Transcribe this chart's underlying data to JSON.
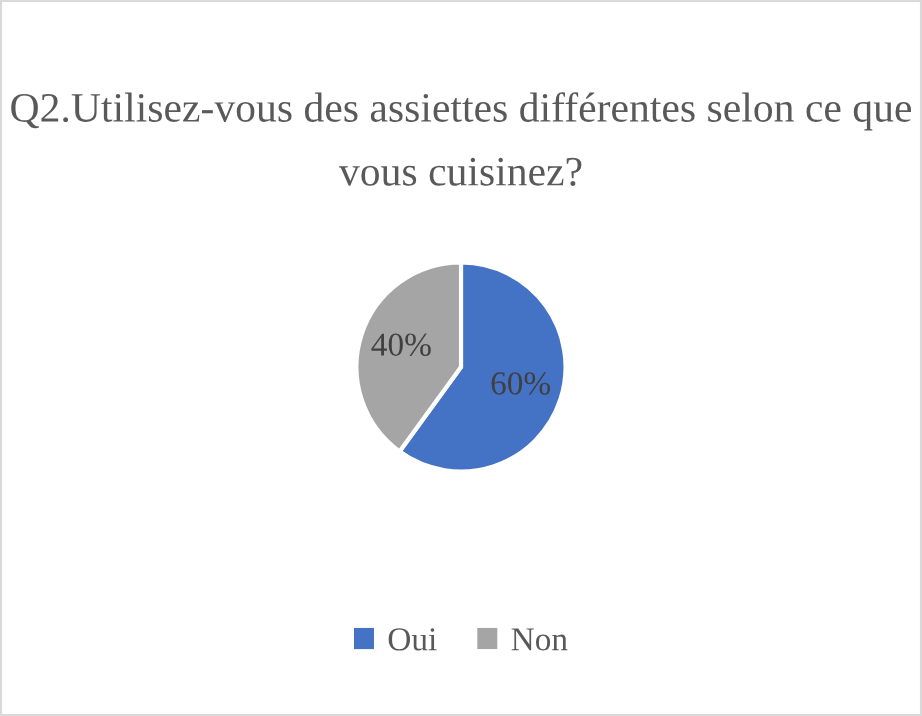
{
  "chart_data": {
    "type": "pie",
    "title": "Q2.Utilisez-vous des assiettes différentes selon ce que vous cuisinez?",
    "categories": [
      "Oui",
      "Non"
    ],
    "values": [
      60,
      40
    ],
    "value_labels": [
      "60%",
      "40%"
    ],
    "colors": [
      "#4472c4",
      "#a5a5a5"
    ],
    "legend": "bottom"
  }
}
